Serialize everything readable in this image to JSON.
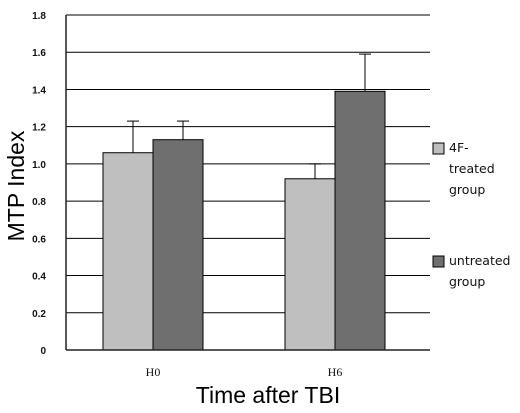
{
  "chart_data": {
    "type": "bar",
    "categories": [
      "H0",
      "H6"
    ],
    "series": [
      {
        "name": "4F-treated group",
        "values": [
          1.06,
          0.92
        ],
        "errors": [
          0.17,
          0.08
        ],
        "color": "#bfbfbf"
      },
      {
        "name": "untreated group",
        "values": [
          1.13,
          1.39
        ],
        "errors": [
          0.1,
          0.2
        ],
        "color": "#6f6f6f"
      }
    ],
    "xlabel": "Time after TBI",
    "ylabel": "MTP Index",
    "ylim": [
      0,
      1.8
    ],
    "yticks": [
      "0",
      "0.2",
      "0.4",
      "0.6",
      "0.8",
      "1.0",
      "1.2",
      "1.4",
      "1.6",
      "1.8"
    ],
    "grid": true,
    "legend_position": "right"
  }
}
